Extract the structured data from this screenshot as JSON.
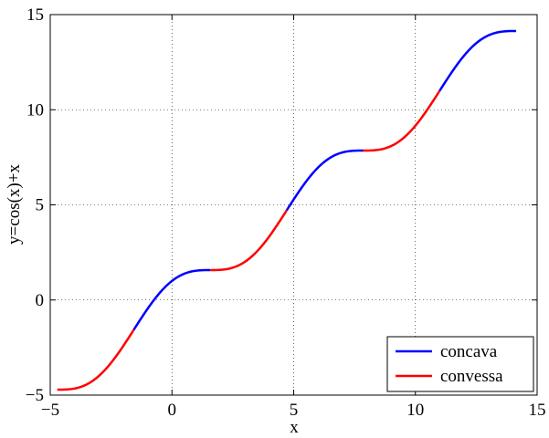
{
  "chart_data": {
    "type": "line",
    "title": "",
    "xlabel": "x",
    "ylabel": "y=cos(x)+x",
    "xlim": [
      -5,
      15
    ],
    "ylim": [
      -5,
      15
    ],
    "xticks": [
      -5,
      0,
      5,
      10,
      15
    ],
    "yticks": [
      -5,
      0,
      5,
      10,
      15
    ],
    "xtick_labels": [
      "−5",
      "0",
      "5",
      "10",
      "15"
    ],
    "ytick_labels": [
      "−5",
      "0",
      "5",
      "10",
      "15"
    ],
    "grid": true,
    "legend_position": "bottom-right",
    "series": [
      {
        "name": "concava",
        "color": "#0000ff",
        "segments": [
          {
            "x_start": -1.5708,
            "x_end": 1.5708
          },
          {
            "x_start": 4.7124,
            "x_end": 7.854
          },
          {
            "x_start": 10.9956,
            "x_end": 14.1372
          }
        ]
      },
      {
        "name": "convessa",
        "color": "#ff0000",
        "segments": [
          {
            "x_start": -4.7124,
            "x_end": -1.5708
          },
          {
            "x_start": 1.5708,
            "x_end": 4.7124
          },
          {
            "x_start": 7.854,
            "x_end": 10.9956
          }
        ]
      }
    ],
    "sample_points": [
      {
        "x": -4.7124,
        "y": -4.7124
      },
      {
        "x": -1.5708,
        "y": -1.5708
      },
      {
        "x": 0,
        "y": 1
      },
      {
        "x": 1.5708,
        "y": 1.5708
      },
      {
        "x": 4.7124,
        "y": 4.7124
      },
      {
        "x": 7.854,
        "y": 7.854
      },
      {
        "x": 10.9956,
        "y": 10.9956
      },
      {
        "x": 14.1372,
        "y": 14.1372
      }
    ]
  }
}
